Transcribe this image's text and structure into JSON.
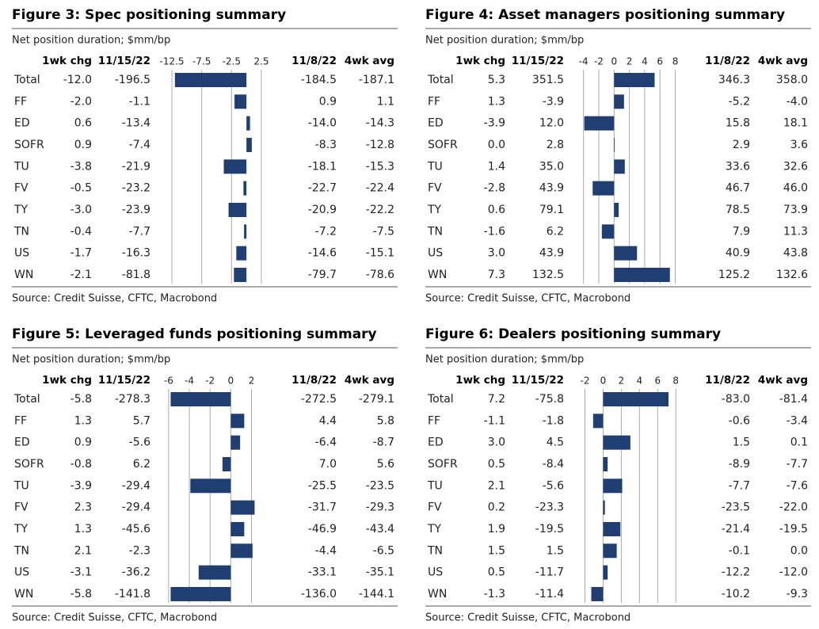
{
  "figures": [
    {
      "title": "Figure 3: Spec positioning summary",
      "subtitle": "Net position duration; $mm/bp",
      "columns": [
        "1wk chg",
        "11/15/22",
        "11/8/22",
        "4wk avg"
      ],
      "chart": {
        "xlim": [
          -14.1,
          4.5
        ],
        "xticks": [
          -12.5,
          -7.5,
          -2.5,
          2.5
        ],
        "color": "#1f3f73"
      },
      "rows": [
        [
          "Total",
          "-12.0",
          "-196.5",
          "-184.5",
          "-187.1"
        ],
        [
          "FF",
          "-2.0",
          "-1.1",
          "0.9",
          "1.1"
        ],
        [
          "ED",
          "0.6",
          "-13.4",
          "-14.0",
          "-14.3"
        ],
        [
          "SOFR",
          "0.9",
          "-7.4",
          "-8.3",
          "-12.8"
        ],
        [
          "TU",
          "-3.8",
          "-21.9",
          "-18.1",
          "-15.3"
        ],
        [
          "FV",
          "-0.5",
          "-23.2",
          "-22.7",
          "-22.4"
        ],
        [
          "TY",
          "-3.0",
          "-23.9",
          "-20.9",
          "-22.2"
        ],
        [
          "TN",
          "-0.4",
          "-7.7",
          "-7.2",
          "-7.5"
        ],
        [
          "US",
          "-1.7",
          "-16.3",
          "-14.6",
          "-15.1"
        ],
        [
          "WN",
          "-2.1",
          "-81.8",
          "-79.7",
          "-78.6"
        ]
      ],
      "source": "Source: Credit Suisse, CFTC, Macrobond"
    },
    {
      "title": "Figure 4: Asset managers positioning summary",
      "subtitle": "Net position duration; $mm/bp",
      "columns": [
        "1wk chg",
        "11/15/22",
        "11/8/22",
        "4wk avg"
      ],
      "chart": {
        "xlim": [
          -5,
          9.5
        ],
        "xticks": [
          -4,
          -2,
          0,
          2,
          4,
          6,
          8
        ],
        "color": "#1f3f73"
      },
      "rows": [
        [
          "Total",
          "5.3",
          "351.5",
          "346.3",
          "358.0"
        ],
        [
          "FF",
          "1.3",
          "-3.9",
          "-5.2",
          "-4.0"
        ],
        [
          "ED",
          "-3.9",
          "12.0",
          "15.8",
          "18.1"
        ],
        [
          "SOFR",
          "0.0",
          "2.8",
          "2.9",
          "3.6"
        ],
        [
          "TU",
          "1.4",
          "35.0",
          "33.6",
          "32.6"
        ],
        [
          "FV",
          "-2.8",
          "43.9",
          "46.7",
          "46.0"
        ],
        [
          "TY",
          "0.6",
          "79.1",
          "78.5",
          "73.9"
        ],
        [
          "TN",
          "-1.6",
          "6.2",
          "7.9",
          "11.3"
        ],
        [
          "US",
          "3.0",
          "43.9",
          "40.9",
          "43.8"
        ],
        [
          "WN",
          "7.3",
          "132.5",
          "125.2",
          "132.6"
        ]
      ],
      "source": "Source: Credit Suisse, CFTC, Macrobond"
    },
    {
      "title": "Figure 5: Leveraged funds positioning summary",
      "subtitle": "Net position duration; $mm/bp",
      "columns": [
        "1wk chg",
        "11/15/22",
        "11/8/22",
        "4wk avg"
      ],
      "chart": {
        "xlim": [
          -6.6,
          4.1
        ],
        "xticks": [
          -6,
          -4,
          -2,
          0,
          2
        ],
        "color": "#1f3f73"
      },
      "rows": [
        [
          "Total",
          "-5.8",
          "-278.3",
          "-272.5",
          "-279.1"
        ],
        [
          "FF",
          "1.3",
          "5.7",
          "4.4",
          "5.8"
        ],
        [
          "ED",
          "0.9",
          "-5.6",
          "-6.4",
          "-8.7"
        ],
        [
          "SOFR",
          "-0.8",
          "6.2",
          "7.0",
          "5.6"
        ],
        [
          "TU",
          "-3.9",
          "-29.4",
          "-25.5",
          "-23.5"
        ],
        [
          "FV",
          "2.3",
          "-29.4",
          "-31.7",
          "-29.3"
        ],
        [
          "TY",
          "1.3",
          "-45.6",
          "-46.9",
          "-43.4"
        ],
        [
          "TN",
          "2.1",
          "-2.3",
          "-4.4",
          "-6.5"
        ],
        [
          "US",
          "-3.1",
          "-36.2",
          "-33.1",
          "-35.1"
        ],
        [
          "WN",
          "-5.8",
          "-141.8",
          "-136.0",
          "-144.1"
        ]
      ],
      "source": "Source: Credit Suisse, CFTC, Macrobond"
    },
    {
      "title": "Figure 6: Dealers positioning summary",
      "subtitle": "Net position duration; $mm/bp",
      "columns": [
        "1wk chg",
        "11/15/22",
        "11/8/22",
        "4wk avg"
      ],
      "chart": {
        "xlim": [
          -3,
          9.2
        ],
        "xticks": [
          -2,
          0,
          2,
          4,
          6,
          8
        ],
        "color": "#1f3f73"
      },
      "rows": [
        [
          "Total",
          "7.2",
          "-75.8",
          "-83.0",
          "-81.4"
        ],
        [
          "FF",
          "-1.1",
          "-1.8",
          "-0.6",
          "-3.4"
        ],
        [
          "ED",
          "3.0",
          "4.5",
          "1.5",
          "0.1"
        ],
        [
          "SOFR",
          "0.5",
          "-8.4",
          "-8.9",
          "-7.7"
        ],
        [
          "TU",
          "2.1",
          "-5.6",
          "-7.7",
          "-7.6"
        ],
        [
          "FV",
          "0.2",
          "-23.3",
          "-23.5",
          "-22.0"
        ],
        [
          "TY",
          "1.9",
          "-19.5",
          "-21.4",
          "-19.5"
        ],
        [
          "TN",
          "1.5",
          "1.5",
          "-0.1",
          "0.0"
        ],
        [
          "US",
          "0.5",
          "-11.7",
          "-12.2",
          "-12.0"
        ],
        [
          "WN",
          "-1.3",
          "-11.4",
          "-10.2",
          "-9.3"
        ]
      ],
      "source": "Source: Credit Suisse, CFTC, Macrobond"
    }
  ]
}
